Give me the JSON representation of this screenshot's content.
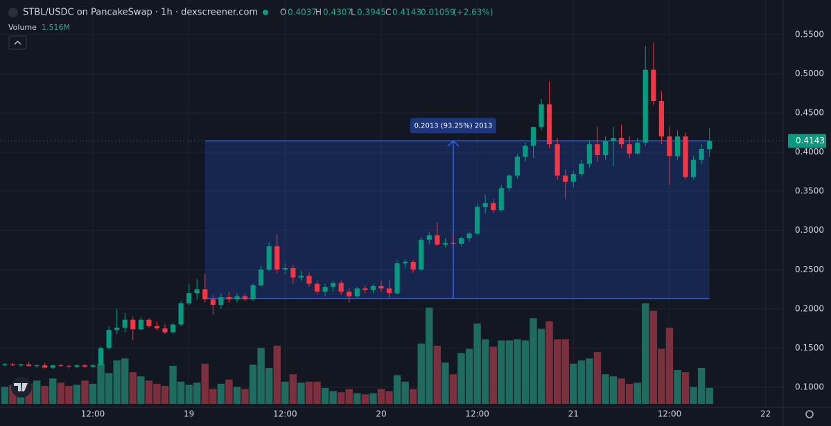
{
  "header": {
    "title": "STBL/USDC on PancakeSwap · 1h · dexscreener.com",
    "o": "O",
    "h": "H",
    "l": "L",
    "c": "C",
    "change": "0.01059",
    "change_pct": "(+2.63%)"
  },
  "chart_data": {
    "type": "candlestick",
    "open": [
      0.128,
      0.129,
      0.128,
      0.129,
      0.127,
      0.128,
      0.125,
      0.128,
      0.127,
      0.126,
      0.128,
      0.126,
      0.128,
      0.15,
      0.173,
      0.176,
      0.186,
      0.174,
      0.186,
      0.178,
      0.175,
      0.17,
      0.18,
      0.207,
      0.22,
      0.225,
      0.212,
      0.205,
      0.215,
      0.212,
      0.216,
      0.212,
      0.23,
      0.25,
      0.28,
      0.25,
      0.252,
      0.24,
      0.242,
      0.232,
      0.222,
      0.228,
      0.233,
      0.222,
      0.216,
      0.226,
      0.224,
      0.229,
      0.226,
      0.22,
      0.258,
      0.26,
      0.25,
      0.288,
      0.294,
      0.282,
      0.284,
      0.283,
      0.29,
      0.296,
      0.33,
      0.335,
      0.326,
      0.354,
      0.37,
      0.394,
      0.408,
      0.432,
      0.461,
      0.41,
      0.37,
      0.362,
      0.372,
      0.385,
      0.41,
      0.396,
      0.414,
      0.418,
      0.41,
      0.398,
      0.412,
      0.505,
      0.465,
      0.42,
      0.395,
      0.42,
      0.368,
      0.39,
      0.4037
    ],
    "high": [
      0.131,
      0.131,
      0.13,
      0.132,
      0.129,
      0.131,
      0.129,
      0.13,
      0.129,
      0.129,
      0.13,
      0.13,
      0.152,
      0.178,
      0.2,
      0.195,
      0.19,
      0.19,
      0.188,
      0.184,
      0.18,
      0.182,
      0.21,
      0.232,
      0.238,
      0.245,
      0.218,
      0.22,
      0.222,
      0.22,
      0.22,
      0.232,
      0.255,
      0.285,
      0.295,
      0.258,
      0.256,
      0.248,
      0.246,
      0.236,
      0.232,
      0.236,
      0.236,
      0.226,
      0.228,
      0.23,
      0.232,
      0.236,
      0.236,
      0.262,
      0.264,
      0.262,
      0.292,
      0.298,
      0.31,
      0.29,
      0.296,
      0.292,
      0.298,
      0.334,
      0.345,
      0.34,
      0.358,
      0.372,
      0.398,
      0.412,
      0.432,
      0.468,
      0.49,
      0.418,
      0.378,
      0.376,
      0.39,
      0.415,
      0.432,
      0.42,
      0.432,
      0.435,
      0.42,
      0.418,
      0.535,
      0.54,
      0.478,
      0.432,
      0.428,
      0.425,
      0.395,
      0.41,
      0.4307
    ],
    "low": [
      0.126,
      0.127,
      0.126,
      0.127,
      0.125,
      0.124,
      0.123,
      0.126,
      0.124,
      0.124,
      0.125,
      0.125,
      0.127,
      0.148,
      0.168,
      0.17,
      0.16,
      0.172,
      0.176,
      0.172,
      0.168,
      0.168,
      0.178,
      0.205,
      0.212,
      0.208,
      0.192,
      0.2,
      0.208,
      0.208,
      0.21,
      0.21,
      0.228,
      0.248,
      0.245,
      0.244,
      0.232,
      0.236,
      0.228,
      0.218,
      0.216,
      0.222,
      0.218,
      0.208,
      0.214,
      0.22,
      0.22,
      0.222,
      0.214,
      0.218,
      0.252,
      0.246,
      0.248,
      0.282,
      0.28,
      0.278,
      0.28,
      0.28,
      0.286,
      0.294,
      0.322,
      0.322,
      0.324,
      0.35,
      0.366,
      0.388,
      0.392,
      0.428,
      0.405,
      0.365,
      0.34,
      0.355,
      0.368,
      0.38,
      0.388,
      0.39,
      0.382,
      0.405,
      0.392,
      0.396,
      0.408,
      0.46,
      0.41,
      0.358,
      0.39,
      0.365,
      0.365,
      0.385,
      0.3945
    ],
    "close": [
      0.129,
      0.128,
      0.129,
      0.127,
      0.128,
      0.125,
      0.128,
      0.127,
      0.126,
      0.128,
      0.126,
      0.128,
      0.15,
      0.173,
      0.176,
      0.186,
      0.174,
      0.186,
      0.178,
      0.175,
      0.17,
      0.18,
      0.207,
      0.22,
      0.225,
      0.212,
      0.205,
      0.215,
      0.212,
      0.216,
      0.212,
      0.23,
      0.25,
      0.28,
      0.25,
      0.252,
      0.24,
      0.242,
      0.232,
      0.222,
      0.228,
      0.233,
      0.222,
      0.216,
      0.226,
      0.224,
      0.229,
      0.226,
      0.22,
      0.258,
      0.26,
      0.25,
      0.288,
      0.294,
      0.282,
      0.284,
      0.283,
      0.29,
      0.296,
      0.33,
      0.335,
      0.326,
      0.354,
      0.37,
      0.394,
      0.408,
      0.432,
      0.461,
      0.41,
      0.37,
      0.362,
      0.372,
      0.385,
      0.41,
      0.396,
      0.414,
      0.418,
      0.41,
      0.398,
      0.412,
      0.505,
      0.465,
      0.42,
      0.395,
      0.42,
      0.368,
      0.39,
      0.404,
      0.4143
    ],
    "volume": [
      1.6,
      1.8,
      1.5,
      1.9,
      2.2,
      1.7,
      2.4,
      2.0,
      1.7,
      1.8,
      2.2,
      1.9,
      3.8,
      2.9,
      4.1,
      4.3,
      3.0,
      2.6,
      2.2,
      1.9,
      1.7,
      3.6,
      2.1,
      1.8,
      2.0,
      3.8,
      1.4,
      1.9,
      2.3,
      1.6,
      1.4,
      3.7,
      5.3,
      3.4,
      5.5,
      2.1,
      2.8,
      2.0,
      2.1,
      2.1,
      1.5,
      1.2,
      1.1,
      1.4,
      1.0,
      0.9,
      1.0,
      1.4,
      1.2,
      2.7,
      2.1,
      1.4,
      5.7,
      9.1,
      5.5,
      3.9,
      2.8,
      4.8,
      5.2,
      7.6,
      6.1,
      5.4,
      6.0,
      6.0,
      6.1,
      6.0,
      8.1,
      7.1,
      7.8,
      6.1,
      6.1,
      3.8,
      4.1,
      4.3,
      4.9,
      2.8,
      2.6,
      2.4,
      1.9,
      2.0,
      9.5,
      8.8,
      5.2,
      7.2,
      3.2,
      3.0,
      1.6,
      3.4,
      1.516
    ],
    "volume_title": "Volume",
    "volume_label": "1.516M",
    "ylim": [
      0.0726,
      0.594
    ],
    "yticks": [
      {
        "value": 0.55,
        "label": "0.5500"
      },
      {
        "value": 0.5,
        "label": "0.5000"
      },
      {
        "value": 0.45,
        "label": "0.4500"
      },
      {
        "value": 0.4,
        "label": "0.4000"
      },
      {
        "value": 0.35,
        "label": "0.3500"
      },
      {
        "value": 0.3,
        "label": "0.3000"
      },
      {
        "value": 0.25,
        "label": "0.2500"
      },
      {
        "value": 0.2,
        "label": "0.2000"
      },
      {
        "value": 0.15,
        "label": "0.1500"
      },
      {
        "value": 0.1,
        "label": "0.1000"
      }
    ],
    "xlim": [
      -0.6,
      97.2
    ],
    "xticks": [
      {
        "value": 11,
        "label": "12:00"
      },
      {
        "value": 23,
        "label": "19"
      },
      {
        "value": 35,
        "label": "12:00"
      },
      {
        "value": 47,
        "label": "20"
      },
      {
        "value": 59,
        "label": "12:00"
      },
      {
        "value": 71,
        "label": "21"
      },
      {
        "value": 83,
        "label": "12:00"
      },
      {
        "value": 95,
        "label": "22"
      }
    ],
    "colors": {
      "up": "#089981",
      "down": "#f23645",
      "volume_up": "#1f6b60",
      "volume_down": "#7c2f3d"
    },
    "measure": {
      "label": "0.2013 (93.25%) 2013",
      "low": 0.213,
      "high": 0.4143
    },
    "grid": true
  }
}
